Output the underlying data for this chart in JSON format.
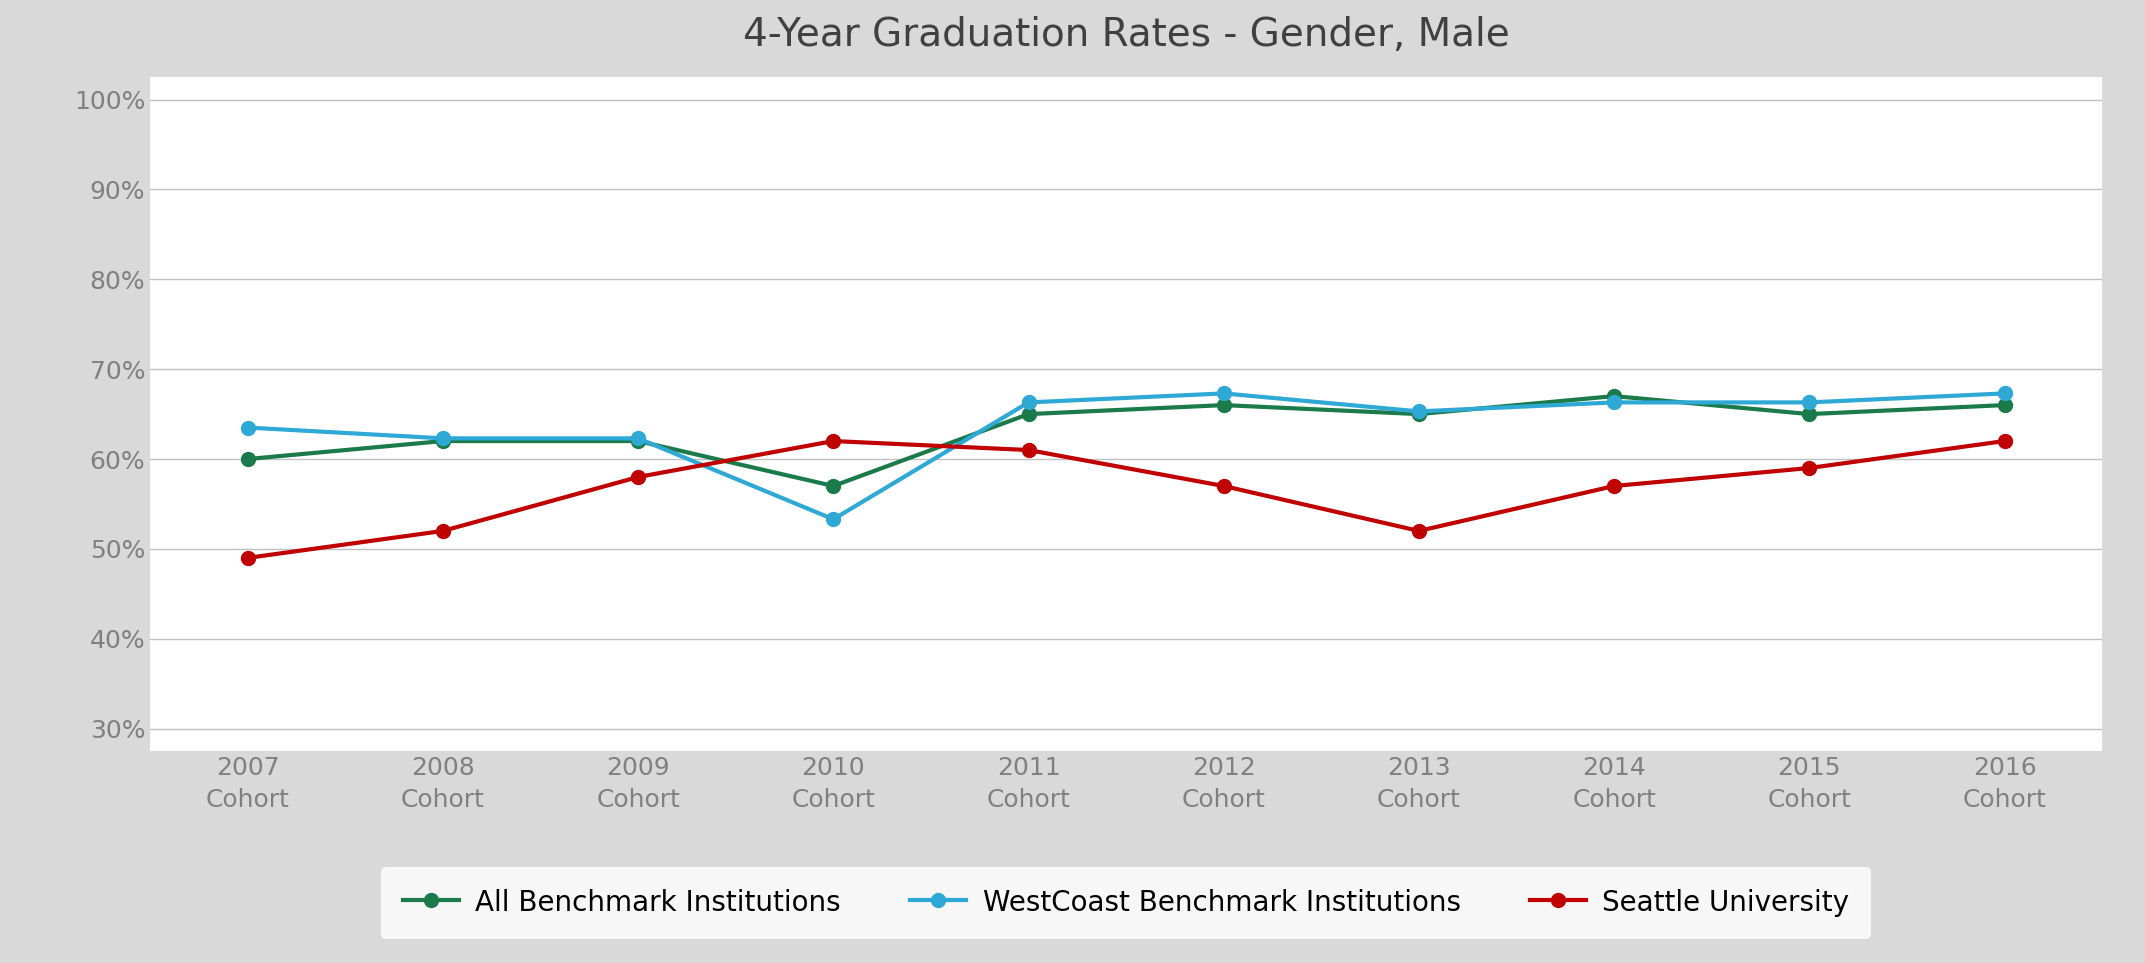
{
  "title": "4-Year Graduation Rates - Gender, Male",
  "x_labels": [
    "2007\nCohort",
    "2008\nCohort",
    "2009\nCohort",
    "2010\nCohort",
    "2011\nCohort",
    "2012\nCohort",
    "2013\nCohort",
    "2014\nCohort",
    "2015\nCohort",
    "2016\nCohort"
  ],
  "x_values": [
    0,
    1,
    2,
    3,
    4,
    5,
    6,
    7,
    8,
    9
  ],
  "series": [
    {
      "name": "All Benchmark Institutions",
      "color": "#1a7a4a",
      "values": [
        0.6,
        0.62,
        0.62,
        0.57,
        0.65,
        0.66,
        0.65,
        0.67,
        0.65,
        0.66
      ],
      "marker": "o",
      "linewidth": 3.0,
      "markersize": 10
    },
    {
      "name": "WestCoast Benchmark Institutions",
      "color": "#2ea8d5",
      "values": [
        0.635,
        0.623,
        0.623,
        0.533,
        0.663,
        0.673,
        0.653,
        0.663,
        0.663,
        0.673
      ],
      "marker": "o",
      "linewidth": 3.0,
      "markersize": 10
    },
    {
      "name": "Seattle University",
      "color": "#c00000",
      "values": [
        0.49,
        0.52,
        0.58,
        0.62,
        0.61,
        0.57,
        0.52,
        0.57,
        0.59,
        0.62
      ],
      "marker": "o",
      "linewidth": 3.0,
      "markersize": 10
    }
  ],
  "ylim": [
    0.275,
    1.025
  ],
  "yticks": [
    0.3,
    0.4,
    0.5,
    0.6,
    0.7,
    0.8,
    0.9,
    1.0
  ],
  "fig_background_color": "#d9d9d9",
  "plot_background": "#ffffff",
  "legend_background": "#ffffff",
  "grid_color": "#c0c0c0",
  "title_fontsize": 28,
  "tick_fontsize": 18,
  "legend_fontsize": 20,
  "title_color": "#404040",
  "tick_color": "#808080"
}
